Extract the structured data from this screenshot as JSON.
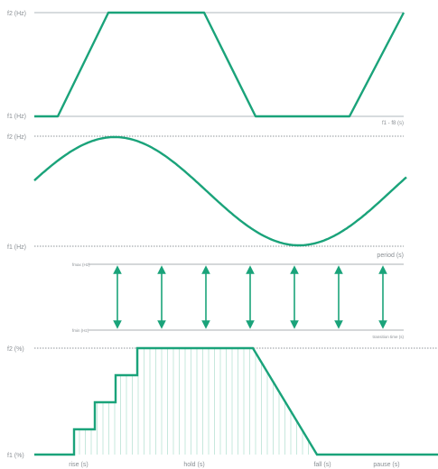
{
  "colors": {
    "accent": "#1aa37a",
    "guide": "#bfc5ca",
    "dotted": "#8f959a",
    "text": "#8a8f94",
    "thin": "#b9e3d5"
  },
  "panel1": {
    "top_label": "f2 (Hz)",
    "bottom_label": "f1 (Hz)",
    "axis_label": "f1 - f8 (s)"
  },
  "panel2": {
    "top_label": "f2 (Hz)",
    "bottom_label": "f1 (Hz)",
    "axis_label": "period (s)"
  },
  "panel3": {
    "top_label": "fmax (Hz)",
    "bottom_label": "fmin (Hz)",
    "axis_label": "transition time (s)",
    "arrow_count": 7
  },
  "panel4": {
    "top_label": "f2 (%)",
    "bottom_label": "f1 (%)",
    "x_labels": [
      "rise (s)",
      "hold (s)",
      "fall (s)",
      "pause (s)"
    ]
  }
}
